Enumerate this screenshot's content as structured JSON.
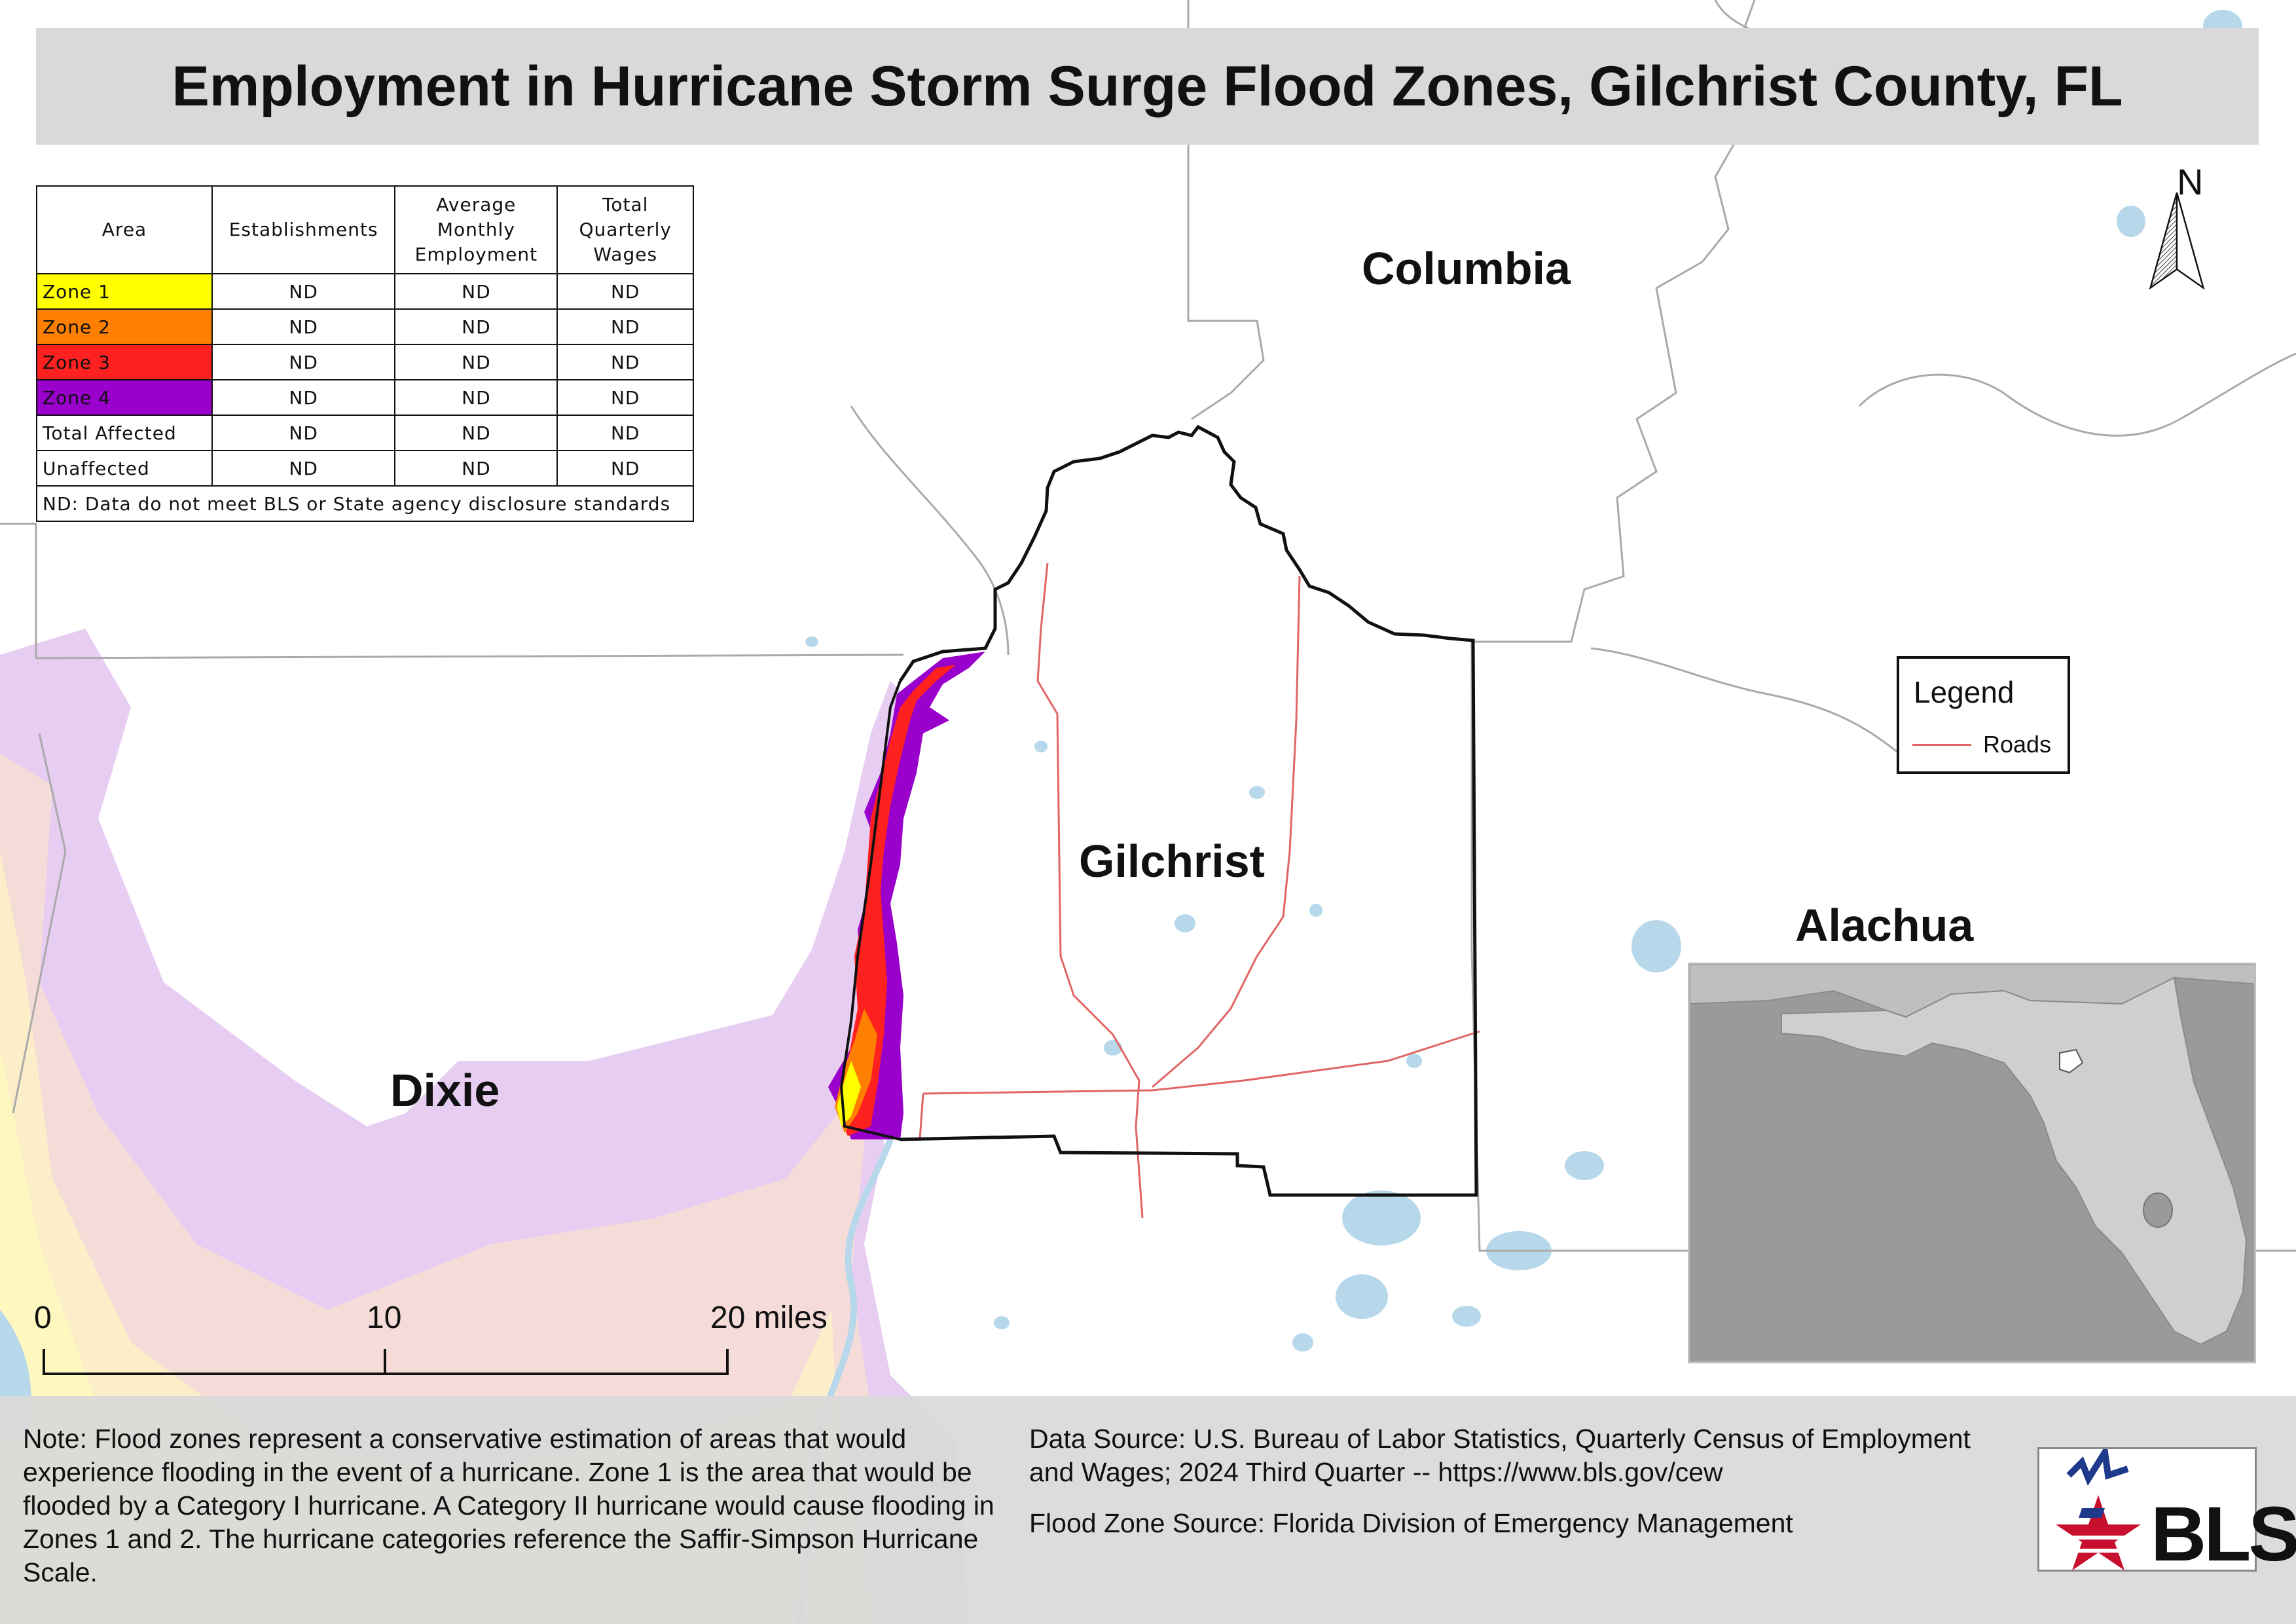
{
  "title": "Employment in Hurricane Storm Surge Flood Zones, Gilchrist County, FL",
  "counties": {
    "columbia": "Columbia",
    "gilchrist": "Gilchrist",
    "alachua": "Alachua",
    "dixie": "Dixie"
  },
  "table": {
    "headers": [
      "Area",
      "Establishments",
      "Average Monthly Employment",
      "Total Quarterly Wages"
    ],
    "rows": [
      {
        "area": "Zone 1",
        "color": "#ffff00",
        "values": [
          "ND",
          "ND",
          "ND"
        ]
      },
      {
        "area": "Zone 2",
        "color": "#ff8000",
        "values": [
          "ND",
          "ND",
          "ND"
        ]
      },
      {
        "area": "Zone 3",
        "color": "#ff2020",
        "values": [
          "ND",
          "ND",
          "ND"
        ]
      },
      {
        "area": "Zone 4",
        "color": "#9900cc",
        "values": [
          "ND",
          "ND",
          "ND"
        ]
      },
      {
        "area": "Total Affected",
        "color": "#ffffff",
        "values": [
          "ND",
          "ND",
          "ND"
        ]
      },
      {
        "area": "Unaffected",
        "color": "#ffffff",
        "values": [
          "ND",
          "ND",
          "ND"
        ]
      }
    ],
    "note": "ND: Data do not meet BLS or State agency disclosure standards"
  },
  "legend": {
    "title": "Legend",
    "roads_label": "Roads",
    "roads_color": "#e06666"
  },
  "north_label": "N",
  "scale": {
    "ticks": [
      "0",
      "10",
      "20 miles"
    ]
  },
  "footer": {
    "note": "Note: Flood zones represent a conservative estimation of areas that would experience flooding in the event of a hurricane. Zone 1 is the area that would be flooded by a Category I hurricane. A Category II hurricane would cause flooding in Zones 1 and 2. The hurricane categories reference the Saffir-Simpson Hurricane Scale.",
    "data_source": "Data Source: U.S. Bureau of Labor Statistics, Quarterly Census of Employment and Wages; 2024 Third Quarter -- https://www.bls.gov/cew",
    "flood_source": "Flood Zone Source: Florida Division of Emergency Management",
    "logo_text": "BLS"
  },
  "colors": {
    "water": "#b7d7ea",
    "county_border": "#aaaaaa",
    "zone1": "#ffff00",
    "zone2": "#ff8000",
    "zone3": "#ff2020",
    "zone4": "#9900cc",
    "surge_light": "#e6c8f0"
  }
}
